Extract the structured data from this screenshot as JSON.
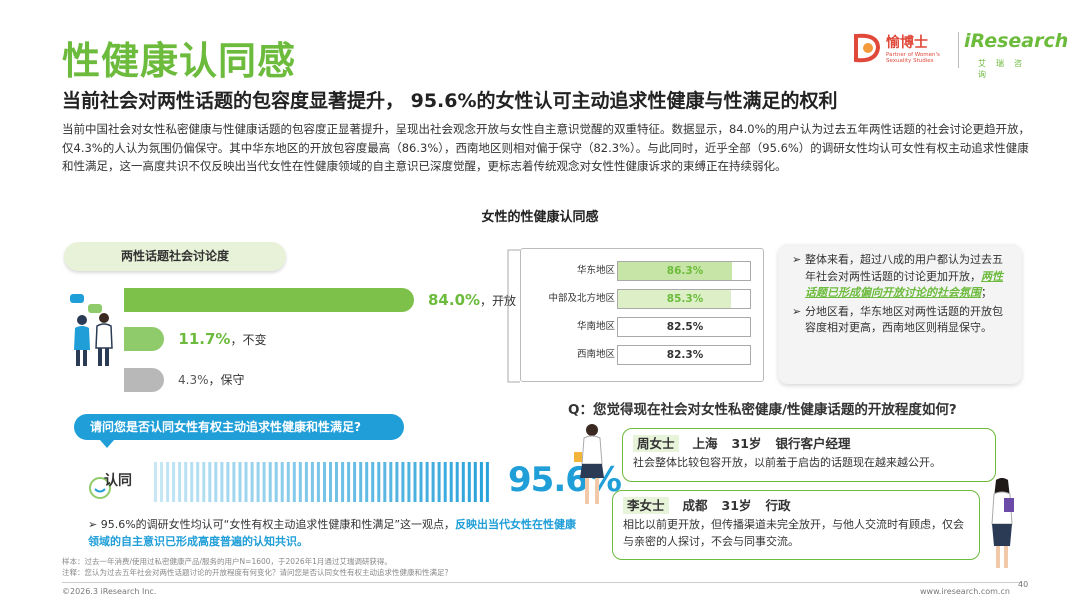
{
  "header": {
    "title": "性健康认同感",
    "subtitle": "当前社会对两性话题的包容度显著提升， 95.6%的女性认可主动追求性健康与性满足的权利",
    "intro": "当前中国社会对女性私密健康与性健康话题的包容度正显著提升，呈现出社会观念开放与女性自主意识觉醒的双重特征。数据显示，84.0%的用户认为过去五年两性话题的社会讨论更趋开放，仅4.3%的人认为氛围仍偏保守。其中华东地区的开放包容度最高（86.3%），西南地区则相对偏于保守（82.3%）。与此同时，近乎全部（95.6%）的调研女性均认可女性有权主动追求性健康和性满足，这一高度共识不仅反映出当代女性在性健康领域的自主意识已深度觉醒，更标志着传统观念对女性性健康诉求的束缚正在持续弱化。"
  },
  "logo": {
    "partner_cn": "愉博士",
    "partner_sub": "Partner of Women's Sexuality Studies",
    "brand": "iResearch",
    "brand_cn": "艾瑞咨询"
  },
  "chart_title": "女性的性健康认同感",
  "discussion_label": "两性话题社会讨论度",
  "chart_data": [
    {
      "type": "bar",
      "orientation": "horizontal",
      "title": "两性话题社会讨论度",
      "categories": [
        "开放",
        "不变",
        "保守"
      ],
      "values": [
        84.0,
        11.7,
        4.3
      ],
      "value_labels": [
        "84.0%",
        "11.7%",
        "4.3%"
      ],
      "colors": [
        "#7dc04a",
        "#8fcb6a",
        "#b8b8b8"
      ]
    },
    {
      "type": "bar",
      "orientation": "horizontal",
      "categories": [
        "华东地区",
        "中部及北方地区",
        "华南地区",
        "西南地区"
      ],
      "values": [
        86.3,
        85.3,
        82.5,
        82.3
      ],
      "value_labels": [
        "86.3%",
        "85.3%",
        "82.5%",
        "82.3%"
      ],
      "colors": [
        "#c7e5a6",
        "#dcefc6",
        "#ffffff",
        "#ffffff"
      ]
    },
    {
      "type": "bar",
      "orientation": "horizontal",
      "categories": [
        "认同"
      ],
      "values": [
        95.6
      ],
      "value_labels": [
        "95.6%"
      ],
      "colors": [
        "#1f9ed8"
      ]
    }
  ],
  "bar_labels": {
    "open": "，开放",
    "same": "，不变",
    "conservative": "，保守"
  },
  "notes": {
    "p1_a": "整体来看，超过八成的用户都认为过去五年社会对两性话题的讨论更加开放，",
    "p1_em": "两性话题已形成偏向开放讨论的社会氛围",
    "p1_end": "；",
    "p2": "分地区看，华东地区对两性话题的开放包容度相对更高，西南地区则稍显保守。"
  },
  "agree_question": "请问您是否认同女性有权主动追求性健康和性满足?",
  "agree_label": "认同",
  "agree_summary": {
    "a": "95.6%的调研女性均认可“女性有权主动追求性健康和性满足”这一观点，",
    "em": "反映出当代女性在性健康领域的自主意识已形成高度普遍的认知共识。"
  },
  "question": "Q：您觉得现在社会对女性私密健康/性健康话题的开放程度如何?",
  "quotes": [
    {
      "name": "周女士",
      "city": "上海",
      "age": "31岁",
      "job": "银行客户经理",
      "text": "社会整体比较包容开放，以前羞于启齿的话题现在越来越公开。"
    },
    {
      "name": "李女士",
      "city": "成都",
      "age": "31岁",
      "job": "行政",
      "text": "相比以前更开放，但传播渠道未完全放开，与他人交流时有顾虑，仅会与亲密的人探讨，不会与同事交流。"
    }
  ],
  "footnote": {
    "sample": "样本：过去一年消费/使用过私密健康产品/服务的用户N=1600，于2026年1月通过艾瑞调研获得。",
    "note": "注释：您认为过去五年社会对两性话题讨论的开放程度有何变化？请问您是否认同女性有权主动追求性健康和性满足？"
  },
  "footer": {
    "copyright": "©2026.3 iResearch Inc.",
    "url": "www.iresearch.com.cn",
    "page": "40"
  }
}
